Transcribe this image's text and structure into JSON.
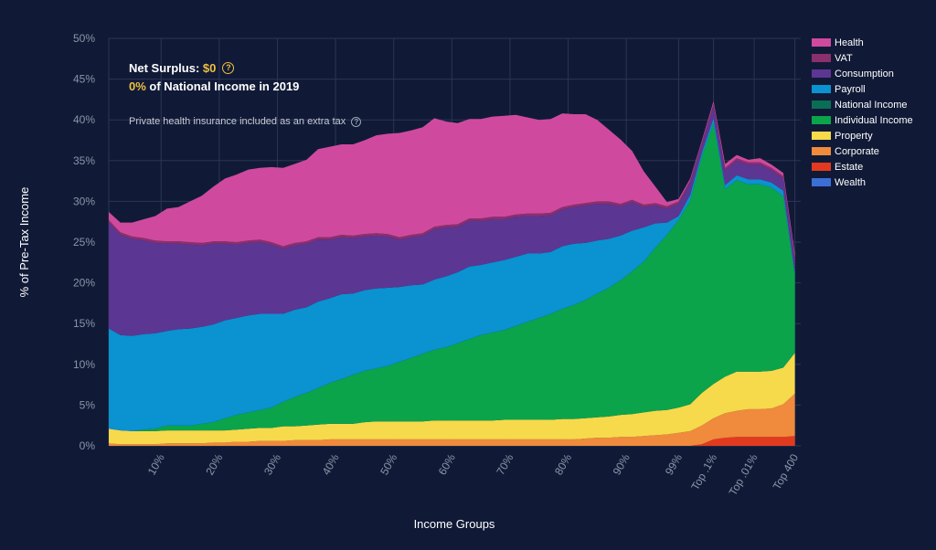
{
  "summary": {
    "net_surplus_label": "Net Surplus:",
    "net_surplus_value": "$0",
    "pct_value": "0%",
    "pct_text": "of National Income in 2019",
    "note": "Private health insurance included as an extra tax",
    "help_glyph": "?"
  },
  "chart_data": {
    "type": "area",
    "stacked": true,
    "xlabel": "Income Groups",
    "ylabel": "% of Pre-Tax Income",
    "ylim": [
      0,
      50
    ],
    "yticks": [
      0,
      5,
      10,
      15,
      20,
      25,
      30,
      35,
      40,
      45,
      50
    ],
    "ytick_suffix": "%",
    "grid": true,
    "legend_position": "right",
    "x_tick_labels": [
      "10%",
      "20%",
      "30%",
      "40%",
      "50%",
      "60%",
      "70%",
      "80%",
      "90%",
      "99%",
      "Top .1%",
      "Top .01%",
      "Top 400"
    ],
    "x_tick_positions": [
      9,
      19,
      29,
      39,
      49,
      59,
      69,
      79,
      89,
      98,
      104,
      111,
      118
    ],
    "x": [
      0,
      2,
      4,
      6,
      8,
      10,
      12,
      14,
      16,
      18,
      20,
      22,
      24,
      26,
      28,
      30,
      32,
      34,
      36,
      38,
      40,
      42,
      44,
      46,
      48,
      50,
      52,
      54,
      56,
      58,
      60,
      62,
      64,
      66,
      68,
      70,
      72,
      74,
      76,
      78,
      80,
      82,
      84,
      86,
      88,
      90,
      92,
      94,
      96,
      98,
      100,
      102,
      104,
      106,
      108,
      110,
      112,
      114,
      116,
      118
    ],
    "x_range": [
      0,
      119
    ],
    "series": [
      {
        "name": "Wealth",
        "color": "#3b6fd6",
        "values": [
          0,
          0,
          0,
          0,
          0,
          0,
          0,
          0,
          0,
          0,
          0,
          0,
          0,
          0,
          0,
          0,
          0,
          0,
          0,
          0,
          0,
          0,
          0,
          0,
          0,
          0,
          0,
          0,
          0,
          0,
          0,
          0,
          0,
          0,
          0,
          0,
          0,
          0,
          0,
          0,
          0,
          0,
          0,
          0,
          0,
          0,
          0,
          0,
          0,
          0,
          0,
          0,
          0,
          0,
          0,
          0,
          0,
          0,
          0,
          0
        ]
      },
      {
        "name": "Estate",
        "color": "#e23a1f",
        "values": [
          0,
          0,
          0,
          0,
          0,
          0,
          0,
          0,
          0,
          0,
          0,
          0,
          0,
          0,
          0,
          0,
          0,
          0,
          0,
          0,
          0,
          0,
          0,
          0,
          0,
          0,
          0,
          0,
          0,
          0,
          0,
          0,
          0,
          0,
          0,
          0,
          0,
          0,
          0,
          0,
          0,
          0,
          0,
          0,
          0,
          0,
          0,
          0,
          0,
          0,
          0,
          0.2,
          0.8,
          1.0,
          1.1,
          1.1,
          1.1,
          1.1,
          1.1,
          1.2
        ]
      },
      {
        "name": "Corporate",
        "color": "#f08a3c",
        "values": [
          0.3,
          0.2,
          0.2,
          0.2,
          0.2,
          0.3,
          0.3,
          0.3,
          0.3,
          0.4,
          0.4,
          0.5,
          0.5,
          0.6,
          0.6,
          0.6,
          0.7,
          0.7,
          0.7,
          0.8,
          0.8,
          0.8,
          0.8,
          0.8,
          0.8,
          0.8,
          0.8,
          0.8,
          0.8,
          0.8,
          0.8,
          0.8,
          0.8,
          0.8,
          0.8,
          0.8,
          0.8,
          0.8,
          0.8,
          0.8,
          0.8,
          0.9,
          1.0,
          1.0,
          1.1,
          1.1,
          1.2,
          1.3,
          1.4,
          1.6,
          1.8,
          2.3,
          2.6,
          3.0,
          3.2,
          3.4,
          3.4,
          3.5,
          4.0,
          5.2
        ]
      },
      {
        "name": "Property",
        "color": "#f7d94c",
        "values": [
          1.8,
          1.7,
          1.6,
          1.6,
          1.6,
          1.6,
          1.6,
          1.6,
          1.6,
          1.5,
          1.5,
          1.5,
          1.6,
          1.6,
          1.6,
          1.8,
          1.7,
          1.8,
          1.9,
          1.9,
          1.9,
          1.9,
          2.1,
          2.2,
          2.2,
          2.2,
          2.2,
          2.2,
          2.3,
          2.3,
          2.3,
          2.3,
          2.3,
          2.3,
          2.4,
          2.4,
          2.4,
          2.4,
          2.4,
          2.5,
          2.5,
          2.5,
          2.5,
          2.6,
          2.7,
          2.8,
          2.9,
          3.0,
          3.0,
          3.1,
          3.3,
          4.0,
          4.2,
          4.5,
          4.8,
          4.6,
          4.6,
          4.6,
          4.5,
          5.0
        ]
      },
      {
        "name": "Individual Income",
        "color": "#0ba44a",
        "values": [
          0,
          0,
          0,
          0.2,
          0.3,
          0.6,
          0.6,
          0.6,
          0.8,
          1.0,
          1.5,
          1.8,
          2.0,
          2.2,
          2.5,
          3.0,
          3.6,
          4.0,
          4.5,
          5.0,
          5.5,
          6.0,
          6.3,
          6.5,
          6.8,
          7.3,
          7.8,
          8.3,
          8.7,
          9.0,
          9.5,
          10.0,
          10.5,
          10.8,
          11.0,
          11.5,
          12.0,
          12.5,
          13.0,
          13.5,
          14.0,
          14.5,
          15.2,
          15.8,
          16.5,
          17.5,
          18.5,
          20.0,
          21.5,
          23.0,
          25.0,
          29.0,
          32.0,
          23.0,
          23.5,
          23.0,
          23.0,
          22.5,
          21.0,
          9.5
        ]
      },
      {
        "name": "National Income",
        "color": "#0a6e55",
        "values": [
          0,
          0,
          0,
          0,
          0,
          0,
          0,
          0,
          0,
          0,
          0,
          0,
          0,
          0,
          0,
          0,
          0,
          0,
          0,
          0,
          0,
          0,
          0,
          0,
          0,
          0,
          0,
          0,
          0,
          0,
          0,
          0,
          0,
          0,
          0,
          0,
          0,
          0,
          0,
          0,
          0,
          0,
          0,
          0,
          0,
          0,
          0,
          0,
          0,
          0,
          0,
          0,
          0,
          0,
          0,
          0,
          0,
          0,
          0,
          0
        ]
      },
      {
        "name": "Payroll",
        "color": "#0a92d1",
        "values": [
          12.3,
          11.7,
          11.7,
          11.7,
          11.7,
          11.6,
          11.8,
          11.9,
          11.9,
          12.0,
          12.0,
          11.9,
          11.9,
          11.8,
          11.5,
          10.8,
          10.7,
          10.5,
          10.6,
          10.4,
          10.4,
          10.0,
          9.9,
          9.8,
          9.6,
          9.2,
          8.9,
          8.5,
          8.6,
          8.7,
          8.7,
          8.9,
          8.6,
          8.6,
          8.6,
          8.5,
          8.4,
          7.9,
          7.6,
          7.7,
          7.5,
          7.0,
          6.5,
          6.0,
          5.5,
          5.0,
          4.2,
          3.0,
          1.5,
          0.5,
          0.7,
          0.5,
          0.6,
          0.5,
          0.6,
          0.6,
          0.6,
          0.6,
          0.7,
          0.4
        ]
      },
      {
        "name": "Consumption",
        "color": "#5c3693",
        "values": [
          13.0,
          12.3,
          11.9,
          11.5,
          11.1,
          10.7,
          10.5,
          10.3,
          10.0,
          9.9,
          9.4,
          9.0,
          8.9,
          8.8,
          8.5,
          8.0,
          7.9,
          7.8,
          7.6,
          7.2,
          7.0,
          6.8,
          6.6,
          6.5,
          6.3,
          5.8,
          5.9,
          6.0,
          6.2,
          6.0,
          5.6,
          5.6,
          5.4,
          5.3,
          5.0,
          4.9,
          4.6,
          4.6,
          4.5,
          4.5,
          4.5,
          4.6,
          4.5,
          4.3,
          3.6,
          3.5,
          2.5,
          2.2,
          1.7,
          1.5,
          1.5,
          1.0,
          1.5,
          1.8,
          1.8,
          1.8,
          1.8,
          1.5,
          1.5,
          1.5
        ]
      },
      {
        "name": "VAT",
        "color": "#8c2f6e",
        "values": [
          0.3,
          0.3,
          0.3,
          0.3,
          0.3,
          0.3,
          0.3,
          0.3,
          0.3,
          0.3,
          0.3,
          0.3,
          0.3,
          0.3,
          0.3,
          0.3,
          0.3,
          0.3,
          0.3,
          0.3,
          0.3,
          0.3,
          0.3,
          0.3,
          0.3,
          0.3,
          0.3,
          0.3,
          0.3,
          0.3,
          0.3,
          0.3,
          0.3,
          0.3,
          0.3,
          0.3,
          0.3,
          0.3,
          0.3,
          0.3,
          0.3,
          0.3,
          0.3,
          0.3,
          0.3,
          0.3,
          0.3,
          0.3,
          0.3,
          0.3,
          0.3,
          0.3,
          0.3,
          0.3,
          0.3,
          0.3,
          0.3,
          0.3,
          0.3,
          0.3
        ]
      },
      {
        "name": "Health",
        "color": "#cf4a9e",
        "values": [
          1.0,
          1.2,
          1.7,
          2.3,
          3.0,
          4.0,
          4.2,
          5.0,
          5.8,
          6.7,
          7.7,
          8.3,
          8.7,
          8.8,
          9.2,
          9.6,
          9.7,
          10.0,
          10.8,
          11.1,
          11.1,
          11.2,
          11.5,
          12.0,
          12.3,
          12.8,
          12.8,
          13.0,
          13.3,
          12.7,
          12.4,
          12.2,
          12.2,
          12.3,
          12.4,
          12.2,
          11.8,
          11.5,
          11.5,
          11.5,
          11.1,
          10.9,
          10.0,
          8.8,
          7.9,
          6.0,
          4.1,
          2.0,
          0.5,
          0.3,
          0.2,
          0.2,
          0.3,
          0.5,
          0.4,
          0.3,
          0.5,
          0.4,
          0.4,
          0.5
        ]
      }
    ]
  }
}
